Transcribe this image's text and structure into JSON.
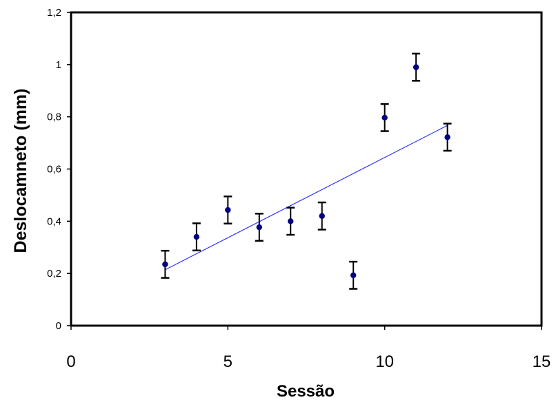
{
  "chart_data": {
    "type": "scatter",
    "title": "",
    "xlabel": "Sessão",
    "ylabel": "Deslocamneto (mm)",
    "xlim": [
      0,
      15
    ],
    "ylim": [
      0,
      1.2
    ],
    "x_ticks": [
      0,
      5,
      10,
      15
    ],
    "x_tick_labels": [
      "0",
      "5",
      "10",
      "15"
    ],
    "y_ticks": [
      0,
      0.2,
      0.4,
      0.6,
      0.8,
      1.0,
      1.2
    ],
    "y_tick_labels": [
      "0",
      "0,2",
      "0,4",
      "0,6",
      "0,8",
      "1",
      "1,2"
    ],
    "grid": false,
    "legend": "none",
    "point_color": "#000080",
    "trendline_color": "#3333ff",
    "points": [
      {
        "x": 3,
        "y": 0.235,
        "err": 0.052
      },
      {
        "x": 4,
        "y": 0.34,
        "err": 0.052
      },
      {
        "x": 5,
        "y": 0.443,
        "err": 0.052
      },
      {
        "x": 6,
        "y": 0.377,
        "err": 0.052
      },
      {
        "x": 7,
        "y": 0.4,
        "err": 0.052
      },
      {
        "x": 8,
        "y": 0.42,
        "err": 0.052
      },
      {
        "x": 9,
        "y": 0.193,
        "err": 0.052
      },
      {
        "x": 10,
        "y": 0.797,
        "err": 0.052
      },
      {
        "x": 11,
        "y": 0.99,
        "err": 0.052
      },
      {
        "x": 12,
        "y": 0.722,
        "err": 0.052
      }
    ],
    "trendline": {
      "type": "linear",
      "x": [
        3,
        12
      ],
      "y": [
        0.214,
        0.767
      ]
    }
  }
}
